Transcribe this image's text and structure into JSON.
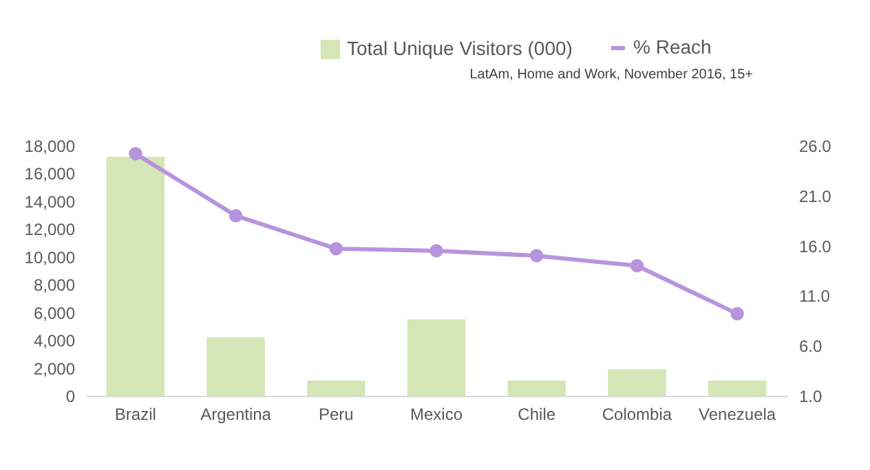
{
  "chart_data": {
    "type": "bar",
    "categories": [
      "Brazil",
      "Argentina",
      "Peru",
      "Mexico",
      "Chile",
      "Colombia",
      "Venezuela"
    ],
    "series": [
      {
        "name": "Total Unique Visitors (000)",
        "color": "#d4e6b5",
        "values": [
          17200,
          4200,
          1100,
          5500,
          1100,
          1900,
          1100
        ]
      },
      {
        "name": "% Reach",
        "type": "line",
        "axis": "y2",
        "color": "#b794dd",
        "values": [
          25.2,
          19.0,
          15.7,
          15.5,
          15.0,
          14.0,
          9.2
        ]
      }
    ],
    "ylim": [
      0,
      18000
    ],
    "yticks": [
      0,
      {
        "value": 2000,
        "label": "2,000"
      },
      {
        "value": 4000,
        "label": "4,000"
      },
      {
        "value": 6000,
        "label": "6,000"
      },
      {
        "value": 8000,
        "label": "8,000"
      },
      {
        "value": 10000,
        "label": "10,000"
      },
      {
        "value": 12000,
        "label": "12,000"
      },
      {
        "value": 14000,
        "label": "14,000"
      },
      {
        "value": 16000,
        "label": "16,000"
      },
      {
        "value": 18000,
        "label": "18,000"
      }
    ],
    "y2lim": [
      1,
      26
    ],
    "y2ticks": [
      {
        "value": 1,
        "label": "1.0"
      },
      {
        "value": 6,
        "label": "6.0"
      },
      {
        "value": 11,
        "label": "11.0"
      },
      {
        "value": 16,
        "label": "16.0"
      },
      {
        "value": 21,
        "label": "21.0"
      },
      {
        "value": 26,
        "label": "26.0"
      }
    ],
    "marker": "circle",
    "line_style": "solid",
    "grid": false,
    "legend": "top right",
    "annotations": [
      "LatAm, Home and Work, November 2016, 15+"
    ]
  }
}
